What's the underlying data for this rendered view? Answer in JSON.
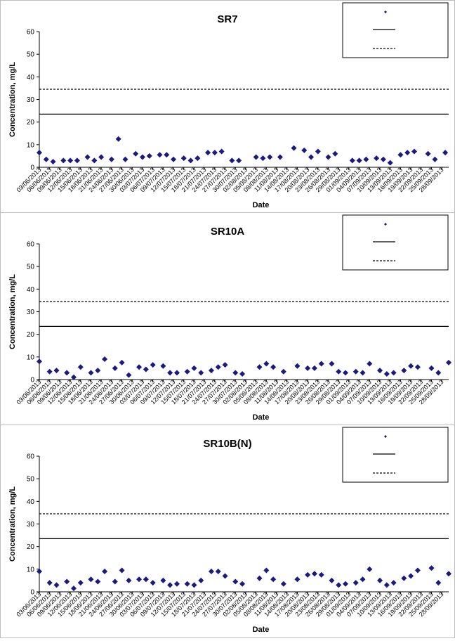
{
  "dates": [
    "03/06/2013",
    "06/06/2013",
    "09/06/2013",
    "12/06/2013",
    "15/06/2013",
    "18/06/2013",
    "21/06/2013",
    "24/06/2013",
    "27/06/2013",
    "30/06/2013",
    "03/07/2013",
    "06/07/2013",
    "09/07/2013",
    "12/07/2013",
    "15/07/2013",
    "18/07/2013",
    "21/07/2013",
    "24/07/2013",
    "27/07/2013",
    "30/07/2013",
    "02/08/2013",
    "05/08/2013",
    "08/08/2013",
    "11/08/2013",
    "14/08/2013",
    "17/08/2013",
    "20/08/2013",
    "23/08/2013",
    "26/08/2013",
    "29/08/2013",
    "01/09/2013",
    "04/09/2013",
    "07/09/2013",
    "10/09/2013",
    "13/09/2013",
    "16/09/2013",
    "19/09/2013",
    "22/09/2013",
    "25/09/2013",
    "28/09/2013"
  ],
  "chart_data": [
    {
      "type": "scatter",
      "title": "SR7",
      "xlabel": "Date",
      "ylabel": "Concentration, mg/L",
      "ylim": [
        0,
        60
      ],
      "yticks": [
        0,
        10,
        20,
        30,
        40,
        50,
        60
      ],
      "x_range": [
        "03/06/2013",
        "30/09/2013"
      ],
      "legend_position": "top-right",
      "legend_labels": [
        "",
        "",
        ""
      ],
      "grid": false,
      "colors": {
        "points": "#1a1a80",
        "lines": "#000000"
      },
      "series": [
        {
          "kind": "scatter",
          "x": [
            "03/06/2013",
            "05/06/2013",
            "07/06/2013",
            "10/06/2013",
            "12/06/2013",
            "14/06/2013",
            "17/06/2013",
            "19/06/2013",
            "21/06/2013",
            "24/06/2013",
            "26/06/2013",
            "28/06/2013",
            "01/07/2013",
            "03/07/2013",
            "05/07/2013",
            "08/07/2013",
            "10/07/2013",
            "12/07/2013",
            "15/07/2013",
            "17/07/2013",
            "19/07/2013",
            "22/07/2013",
            "24/07/2013",
            "26/07/2013",
            "29/07/2013",
            "31/07/2013",
            "05/08/2013",
            "07/08/2013",
            "09/08/2013",
            "12/08/2013",
            "16/08/2013",
            "19/08/2013",
            "21/08/2013",
            "23/08/2013",
            "26/08/2013",
            "28/08/2013",
            "02/09/2013",
            "04/09/2013",
            "06/09/2013",
            "09/09/2013",
            "11/09/2013",
            "13/09/2013",
            "16/09/2013",
            "18/09/2013",
            "20/09/2013",
            "24/09/2013",
            "26/09/2013",
            "29/09/2013"
          ],
          "y": [
            6.5,
            3.5,
            2.5,
            3,
            3,
            3,
            4.5,
            3,
            4.5,
            3.5,
            12.5,
            3.5,
            6,
            4.5,
            5,
            5.5,
            5.5,
            3.5,
            4,
            3,
            4,
            6.5,
            6.5,
            7,
            3,
            3,
            4.5,
            4,
            4.5,
            4.5,
            8.5,
            7.5,
            4.5,
            7,
            4.5,
            6,
            3,
            3,
            3.5,
            4,
            3.5,
            2,
            5.5,
            6.5,
            7,
            6,
            3.5,
            6.5
          ]
        },
        {
          "kind": "line",
          "style": "solid",
          "y": 23.5
        },
        {
          "kind": "line",
          "style": "dashed",
          "y": 34.5
        }
      ]
    },
    {
      "type": "scatter",
      "title": "SR10A",
      "xlabel": "Date",
      "ylabel": "Concentration, mg/L",
      "ylim": [
        0,
        60
      ],
      "yticks": [
        0,
        10,
        20,
        30,
        40,
        50,
        60
      ],
      "x_range": [
        "03/06/2013",
        "30/09/2013"
      ],
      "legend_position": "top-right",
      "legend_labels": [
        "",
        "",
        ""
      ],
      "grid": false,
      "colors": {
        "points": "#1a1a80",
        "lines": "#000000"
      },
      "series": [
        {
          "kind": "scatter",
          "x": [
            "03/06/2013",
            "06/06/2013",
            "08/06/2013",
            "11/06/2013",
            "13/06/2013",
            "15/06/2013",
            "18/06/2013",
            "20/06/2013",
            "22/06/2013",
            "25/06/2013",
            "27/06/2013",
            "29/06/2013",
            "02/07/2013",
            "04/07/2013",
            "06/07/2013",
            "09/07/2013",
            "11/07/2013",
            "13/07/2013",
            "16/07/2013",
            "18/07/2013",
            "20/07/2013",
            "23/07/2013",
            "25/07/2013",
            "27/07/2013",
            "30/07/2013",
            "01/08/2013",
            "06/08/2013",
            "08/08/2013",
            "10/08/2013",
            "13/08/2013",
            "17/08/2013",
            "20/08/2013",
            "22/08/2013",
            "24/08/2013",
            "27/08/2013",
            "29/08/2013",
            "31/08/2013",
            "03/09/2013",
            "05/09/2013",
            "07/09/2013",
            "10/09/2013",
            "12/09/2013",
            "14/09/2013",
            "17/09/2013",
            "19/09/2013",
            "21/09/2013",
            "25/09/2013",
            "27/09/2013",
            "30/09/2013"
          ],
          "y": [
            8,
            3.5,
            4,
            3,
            1,
            5.5,
            3,
            4,
            9,
            5,
            7.5,
            2,
            5.5,
            4.5,
            6.5,
            6,
            3,
            3,
            3.5,
            5,
            3,
            4,
            5.5,
            6.5,
            3,
            2.5,
            5.5,
            7,
            5.5,
            3.5,
            6,
            5,
            5,
            7,
            7,
            3.5,
            3,
            3.5,
            3,
            7,
            4,
            2.5,
            3,
            4,
            6,
            5.5,
            5,
            3,
            7.5
          ]
        },
        {
          "kind": "line",
          "style": "solid",
          "y": 23.5
        },
        {
          "kind": "line",
          "style": "dashed",
          "y": 34.5
        }
      ]
    },
    {
      "type": "scatter",
      "title": "SR10B(N)",
      "xlabel": "Date",
      "ylabel": "Concentration, mg/L",
      "ylim": [
        0,
        60
      ],
      "yticks": [
        0,
        10,
        20,
        30,
        40,
        50,
        60
      ],
      "x_range": [
        "03/06/2013",
        "30/09/2013"
      ],
      "legend_position": "top-right",
      "legend_labels": [
        "",
        "",
        ""
      ],
      "grid": false,
      "colors": {
        "points": "#1a1a80",
        "lines": "#000000"
      },
      "series": [
        {
          "kind": "scatter",
          "x": [
            "03/06/2013",
            "06/06/2013",
            "08/06/2013",
            "11/06/2013",
            "13/06/2013",
            "15/06/2013",
            "18/06/2013",
            "20/06/2013",
            "22/06/2013",
            "25/06/2013",
            "27/06/2013",
            "29/06/2013",
            "02/07/2013",
            "04/07/2013",
            "06/07/2013",
            "09/07/2013",
            "11/07/2013",
            "13/07/2013",
            "16/07/2013",
            "18/07/2013",
            "20/07/2013",
            "23/07/2013",
            "25/07/2013",
            "27/07/2013",
            "30/07/2013",
            "01/08/2013",
            "06/08/2013",
            "08/08/2013",
            "10/08/2013",
            "13/08/2013",
            "17/08/2013",
            "20/08/2013",
            "22/08/2013",
            "24/08/2013",
            "27/08/2013",
            "29/08/2013",
            "31/08/2013",
            "03/09/2013",
            "05/09/2013",
            "07/09/2013",
            "10/09/2013",
            "12/09/2013",
            "14/09/2013",
            "17/09/2013",
            "19/09/2013",
            "21/09/2013",
            "25/09/2013",
            "27/09/2013",
            "30/09/2013"
          ],
          "y": [
            9,
            4,
            3,
            4.5,
            1.5,
            4,
            5.5,
            4.5,
            9,
            4.5,
            9.5,
            5,
            5.5,
            5.5,
            4,
            5,
            3,
            3.5,
            3.5,
            3,
            5,
            9,
            9,
            7,
            4.5,
            3.5,
            6,
            9.5,
            5.5,
            3.5,
            5.5,
            7.5,
            8,
            7.5,
            5,
            3,
            3.5,
            4,
            5.5,
            10,
            5,
            3,
            4,
            6,
            7,
            9.5,
            10.5,
            4,
            8
          ]
        },
        {
          "kind": "line",
          "style": "solid",
          "y": 23.5
        },
        {
          "kind": "line",
          "style": "dashed",
          "y": 34.5
        }
      ]
    }
  ]
}
